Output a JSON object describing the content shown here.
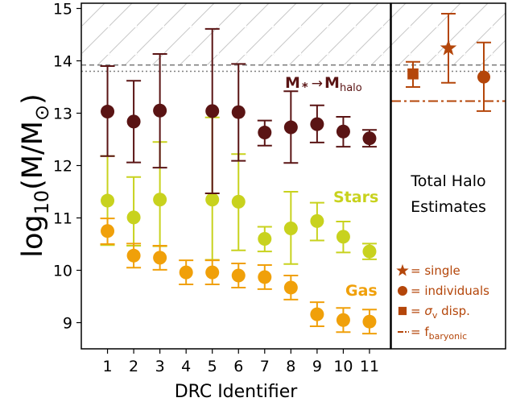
{
  "chart_data": {
    "type": "scatter",
    "xlabel": "DRC Identifier",
    "ylabel": "log",
    "ylabel_sub": "10",
    "ylabel_rest": "(M/M",
    "ylabel_sun": "⊙",
    "ylabel_close": ")",
    "xlim": [
      0,
      11.8
    ],
    "ylim": [
      8.5,
      15.1
    ],
    "x_ticks": [
      1,
      2,
      3,
      4,
      5,
      6,
      7,
      8,
      9,
      10,
      11
    ],
    "y_ticks": [
      9,
      10,
      11,
      12,
      13,
      14,
      15
    ],
    "grid": false,
    "hatched_region": {
      "y_from": 13.92,
      "y_to": 15.1
    },
    "reference_lines": [
      {
        "style": "dashed",
        "y": 13.92,
        "color": "#808080"
      },
      {
        "style": "dotted",
        "y": 13.8,
        "color": "#808080"
      }
    ],
    "series": [
      {
        "name": "Stars",
        "color": "#c8d21e",
        "label_color": "#c8d21e",
        "points": [
          {
            "x": 1,
            "y": 11.33,
            "lo": 10.48,
            "hi": 12.18
          },
          {
            "x": 2,
            "y": 11.01,
            "lo": 10.47,
            "hi": 11.78
          },
          {
            "x": 3,
            "y": 11.35,
            "lo": 10.46,
            "hi": 12.45
          },
          {
            "x": 5,
            "y": 11.35,
            "lo": 10.2,
            "hi": 12.92
          },
          {
            "x": 6,
            "y": 11.31,
            "lo": 10.38,
            "hi": 12.22
          },
          {
            "x": 7,
            "y": 10.6,
            "lo": 10.36,
            "hi": 10.83
          },
          {
            "x": 8,
            "y": 10.8,
            "lo": 10.12,
            "hi": 11.5
          },
          {
            "x": 9,
            "y": 10.94,
            "lo": 10.57,
            "hi": 11.29
          },
          {
            "x": 10,
            "y": 10.64,
            "lo": 10.34,
            "hi": 10.93
          },
          {
            "x": 11,
            "y": 10.36,
            "lo": 10.21,
            "hi": 10.51
          }
        ]
      },
      {
        "name": "Gas",
        "color": "#f0a00a",
        "label_color": "#f0a00a",
        "points": [
          {
            "x": 1,
            "y": 10.75,
            "lo": 10.5,
            "hi": 10.99
          },
          {
            "x": 2,
            "y": 10.28,
            "lo": 10.05,
            "hi": 10.51
          },
          {
            "x": 3,
            "y": 10.24,
            "lo": 10.01,
            "hi": 10.47
          },
          {
            "x": 4,
            "y": 9.96,
            "lo": 9.73,
            "hi": 10.19
          },
          {
            "x": 5,
            "y": 9.96,
            "lo": 9.73,
            "hi": 10.19
          },
          {
            "x": 6,
            "y": 9.9,
            "lo": 9.67,
            "hi": 10.13
          },
          {
            "x": 7,
            "y": 9.87,
            "lo": 9.64,
            "hi": 10.1
          },
          {
            "x": 8,
            "y": 9.67,
            "lo": 9.44,
            "hi": 9.9
          },
          {
            "x": 9,
            "y": 9.16,
            "lo": 8.93,
            "hi": 9.39
          },
          {
            "x": 10,
            "y": 9.05,
            "lo": 8.82,
            "hi": 9.28
          },
          {
            "x": 11,
            "y": 9.02,
            "lo": 8.79,
            "hi": 9.25
          }
        ]
      },
      {
        "name": "M",
        "color": "#5a1414",
        "label_color": "#5a1414",
        "points": [
          {
            "x": 1,
            "y": 13.03,
            "lo": 12.18,
            "hi": 13.9
          },
          {
            "x": 2,
            "y": 12.84,
            "lo": 12.06,
            "hi": 13.62
          },
          {
            "x": 3,
            "y": 13.05,
            "lo": 11.96,
            "hi": 14.13
          },
          {
            "x": 5,
            "y": 13.04,
            "lo": 11.47,
            "hi": 14.61
          },
          {
            "x": 6,
            "y": 13.02,
            "lo": 12.09,
            "hi": 13.94
          },
          {
            "x": 7,
            "y": 12.63,
            "lo": 12.38,
            "hi": 12.86
          },
          {
            "x": 8,
            "y": 12.73,
            "lo": 12.05,
            "hi": 13.42
          },
          {
            "x": 9,
            "y": 12.79,
            "lo": 12.44,
            "hi": 13.15
          },
          {
            "x": 10,
            "y": 12.65,
            "lo": 12.36,
            "hi": 12.93
          },
          {
            "x": 11,
            "y": 12.52,
            "lo": 12.36,
            "hi": 12.68
          }
        ]
      }
    ],
    "series_labels": {
      "stars": "Stars",
      "gas": "Gas",
      "mhalo_m": "M",
      "mhalo_star": "*",
      "mhalo_arrow": "→",
      "mhalo_m2": "M",
      "mhalo_sub": "halo"
    },
    "halo_panel": {
      "color": "#b4460a",
      "title_line1": "Total Halo",
      "title_line2": "Estimates",
      "estimates": [
        {
          "marker": "square",
          "y": 13.75,
          "lo": 13.5,
          "hi": 13.98
        },
        {
          "marker": "star",
          "y": 14.24,
          "lo": 13.58,
          "hi": 14.9
        },
        {
          "marker": "circle",
          "y": 13.69,
          "lo": 13.04,
          "hi": 14.35
        }
      ],
      "baryonic_line_y": 13.23,
      "legend": [
        {
          "marker": "star",
          "text": "= single"
        },
        {
          "marker": "circle",
          "text": "= individuals"
        },
        {
          "marker": "square",
          "text_pre": "= ",
          "text_sym": "σ",
          "text_sub": "v",
          "text_post": " disp."
        },
        {
          "marker": "dashdot",
          "text_pre": "= f",
          "text_sub": "baryonic"
        }
      ]
    }
  }
}
